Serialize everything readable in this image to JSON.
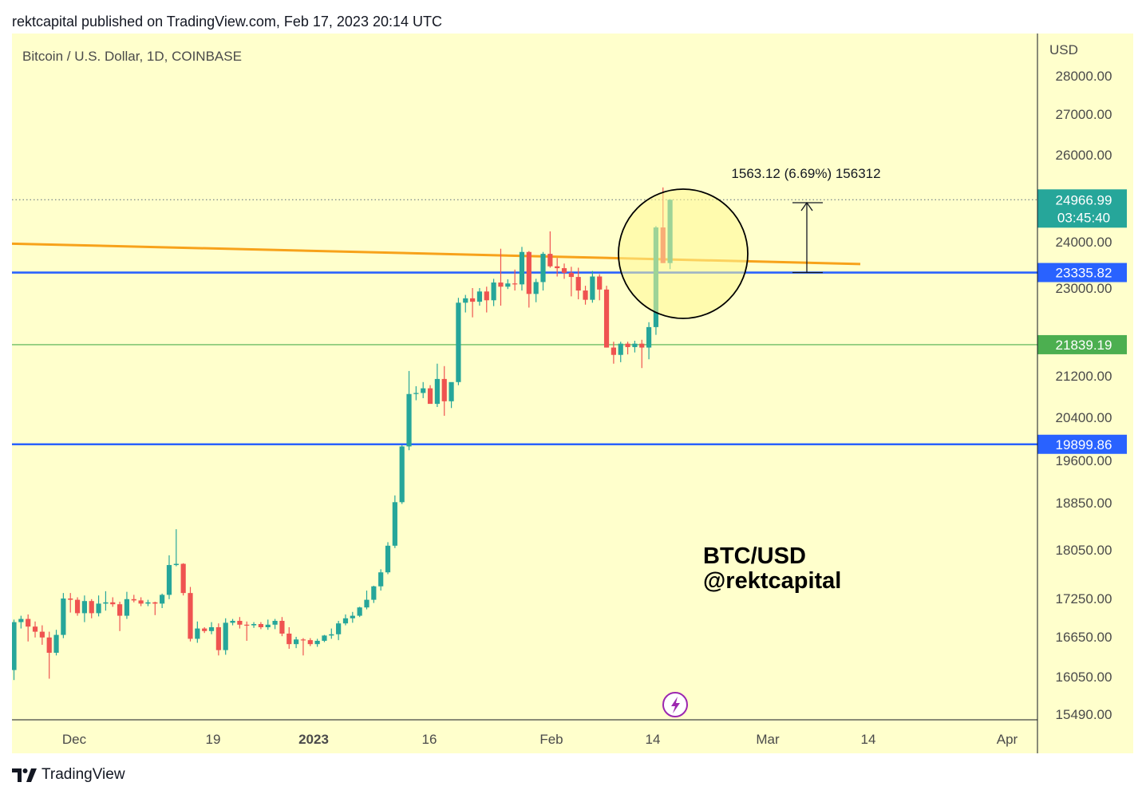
{
  "header": {
    "published": "rektcapital published on TradingView.com, Feb 17, 2023 20:14 UTC"
  },
  "footer": {
    "brand": "TradingView"
  },
  "chart_data": {
    "type": "candlestick",
    "symbol_label": "Bitcoin / U.S. Dollar, 1D, COINBASE",
    "currency": "USD",
    "watermark_lines": [
      "BTC/USD",
      "@rektcapital"
    ],
    "price_ticks": [
      "28000.00",
      "27000.00",
      "26000.00",
      "24000.00",
      "23000.00",
      "21200.00",
      "20400.00",
      "19600.00",
      "18850.00",
      "18050.00",
      "17250.00",
      "16650.00",
      "16050.00",
      "15490.00"
    ],
    "time_ticks": [
      {
        "label": "Dec",
        "bold": false
      },
      {
        "label": "19",
        "bold": false
      },
      {
        "label": "2023",
        "bold": true
      },
      {
        "label": "16",
        "bold": false
      },
      {
        "label": "Feb",
        "bold": false
      },
      {
        "label": "14",
        "bold": false
      },
      {
        "label": "Mar",
        "bold": false
      },
      {
        "label": "14",
        "bold": false
      },
      {
        "label": "Apr",
        "bold": false
      }
    ],
    "horizontal_levels": [
      {
        "price": 23335.82,
        "label": "23335.82",
        "color": "#2962ff",
        "style": "solid-thick"
      },
      {
        "price": 19899.86,
        "label": "19899.86",
        "color": "#2962ff",
        "style": "solid-thick"
      },
      {
        "price": 21839.19,
        "label": "21839.19",
        "color": "#4caf50",
        "style": "solid-thin"
      }
    ],
    "last_price": {
      "price": 24966.99,
      "label": "24966.99",
      "countdown": "03:45:40",
      "color": "#26a69a"
    },
    "trendline": {
      "color": "#f7a21b",
      "from_price": 23960,
      "to_price": 23520
    },
    "measure": {
      "label": "1563.12 (6.69%) 156312",
      "from_price": 23335.82,
      "to_price": 24898.94
    },
    "colors": {
      "up": "#26a69a",
      "down": "#ef5350",
      "background": "#ffffcc"
    },
    "candles": [
      {
        "o": 16150,
        "h": 16920,
        "l": 16000,
        "c": 16880
      },
      {
        "o": 16880,
        "h": 16980,
        "l": 16780,
        "c": 16930
      },
      {
        "o": 16930,
        "h": 17000,
        "l": 16580,
        "c": 16810
      },
      {
        "o": 16810,
        "h": 16890,
        "l": 16640,
        "c": 16730
      },
      {
        "o": 16730,
        "h": 16830,
        "l": 16530,
        "c": 16640
      },
      {
        "o": 16640,
        "h": 16730,
        "l": 16020,
        "c": 16410
      },
      {
        "o": 16410,
        "h": 16760,
        "l": 16370,
        "c": 16680
      },
      {
        "o": 16680,
        "h": 17340,
        "l": 16630,
        "c": 17250
      },
      {
        "o": 17250,
        "h": 17340,
        "l": 17030,
        "c": 17230
      },
      {
        "o": 17230,
        "h": 17270,
        "l": 16980,
        "c": 17020
      },
      {
        "o": 17020,
        "h": 17300,
        "l": 16880,
        "c": 17210
      },
      {
        "o": 17210,
        "h": 17240,
        "l": 16940,
        "c": 17020
      },
      {
        "o": 17020,
        "h": 17300,
        "l": 16970,
        "c": 17170
      },
      {
        "o": 17170,
        "h": 17370,
        "l": 17060,
        "c": 17190
      },
      {
        "o": 17190,
        "h": 17270,
        "l": 17120,
        "c": 17160
      },
      {
        "o": 17160,
        "h": 17200,
        "l": 16740,
        "c": 16980
      },
      {
        "o": 16980,
        "h": 17360,
        "l": 16930,
        "c": 17240
      },
      {
        "o": 17240,
        "h": 17310,
        "l": 17190,
        "c": 17220
      },
      {
        "o": 17220,
        "h": 17270,
        "l": 17130,
        "c": 17170
      },
      {
        "o": 17170,
        "h": 17230,
        "l": 17130,
        "c": 17190
      },
      {
        "o": 17190,
        "h": 17200,
        "l": 16990,
        "c": 17170
      },
      {
        "o": 17170,
        "h": 17330,
        "l": 17100,
        "c": 17310
      },
      {
        "o": 17310,
        "h": 17960,
        "l": 17240,
        "c": 17800
      },
      {
        "o": 17800,
        "h": 18400,
        "l": 17780,
        "c": 17820
      },
      {
        "o": 17820,
        "h": 17830,
        "l": 17300,
        "c": 17340
      },
      {
        "o": 17340,
        "h": 17440,
        "l": 16580,
        "c": 16620
      },
      {
        "o": 16620,
        "h": 16890,
        "l": 16560,
        "c": 16780
      },
      {
        "o": 16780,
        "h": 16800,
        "l": 16710,
        "c": 16740
      },
      {
        "o": 16740,
        "h": 16880,
        "l": 16690,
        "c": 16800
      },
      {
        "o": 16800,
        "h": 16860,
        "l": 16370,
        "c": 16450
      },
      {
        "o": 16450,
        "h": 16940,
        "l": 16380,
        "c": 16870
      },
      {
        "o": 16870,
        "h": 16930,
        "l": 16830,
        "c": 16900
      },
      {
        "o": 16900,
        "h": 16960,
        "l": 16780,
        "c": 16840
      },
      {
        "o": 16840,
        "h": 16890,
        "l": 16590,
        "c": 16830
      },
      {
        "o": 16830,
        "h": 16880,
        "l": 16790,
        "c": 16850
      },
      {
        "o": 16850,
        "h": 16880,
        "l": 16770,
        "c": 16800
      },
      {
        "o": 16800,
        "h": 16920,
        "l": 16760,
        "c": 16840
      },
      {
        "o": 16840,
        "h": 16930,
        "l": 16770,
        "c": 16900
      },
      {
        "o": 16900,
        "h": 16960,
        "l": 16660,
        "c": 16700
      },
      {
        "o": 16700,
        "h": 16800,
        "l": 16470,
        "c": 16540
      },
      {
        "o": 16540,
        "h": 16650,
        "l": 16480,
        "c": 16610
      },
      {
        "o": 16610,
        "h": 16630,
        "l": 16370,
        "c": 16600
      },
      {
        "o": 16600,
        "h": 16630,
        "l": 16510,
        "c": 16540
      },
      {
        "o": 16540,
        "h": 16620,
        "l": 16500,
        "c": 16590
      },
      {
        "o": 16590,
        "h": 16680,
        "l": 16570,
        "c": 16670
      },
      {
        "o": 16670,
        "h": 16780,
        "l": 16620,
        "c": 16690
      },
      {
        "o": 16690,
        "h": 16900,
        "l": 16600,
        "c": 16860
      },
      {
        "o": 16860,
        "h": 17000,
        "l": 16830,
        "c": 16940
      },
      {
        "o": 16940,
        "h": 17040,
        "l": 16870,
        "c": 16980
      },
      {
        "o": 16980,
        "h": 17120,
        "l": 16960,
        "c": 17110
      },
      {
        "o": 17110,
        "h": 17380,
        "l": 17080,
        "c": 17230
      },
      {
        "o": 17230,
        "h": 17460,
        "l": 17180,
        "c": 17450
      },
      {
        "o": 17450,
        "h": 17730,
        "l": 17380,
        "c": 17680
      },
      {
        "o": 17680,
        "h": 18180,
        "l": 17650,
        "c": 18120
      },
      {
        "o": 18120,
        "h": 18980,
        "l": 18080,
        "c": 18860
      },
      {
        "o": 18860,
        "h": 19880,
        "l": 18830,
        "c": 19860
      },
      {
        "o": 19860,
        "h": 21300,
        "l": 19790,
        "c": 20850
      },
      {
        "o": 20850,
        "h": 21000,
        "l": 20730,
        "c": 20870
      },
      {
        "o": 20870,
        "h": 21080,
        "l": 20770,
        "c": 20960
      },
      {
        "o": 20960,
        "h": 21020,
        "l": 20710,
        "c": 20660
      },
      {
        "o": 20660,
        "h": 21450,
        "l": 20600,
        "c": 21140
      },
      {
        "o": 21140,
        "h": 21400,
        "l": 20430,
        "c": 20710
      },
      {
        "o": 20710,
        "h": 21060,
        "l": 20580,
        "c": 21080
      },
      {
        "o": 21080,
        "h": 22800,
        "l": 21020,
        "c": 22700
      },
      {
        "o": 22700,
        "h": 22860,
        "l": 22500,
        "c": 22790
      },
      {
        "o": 22790,
        "h": 23000,
        "l": 22400,
        "c": 22720
      },
      {
        "o": 22720,
        "h": 23000,
        "l": 22640,
        "c": 22930
      },
      {
        "o": 22930,
        "h": 23030,
        "l": 22500,
        "c": 22750
      },
      {
        "o": 22750,
        "h": 23200,
        "l": 22630,
        "c": 23120
      },
      {
        "o": 23120,
        "h": 23850,
        "l": 22640,
        "c": 23030
      },
      {
        "o": 23030,
        "h": 23190,
        "l": 22980,
        "c": 23100
      },
      {
        "o": 23100,
        "h": 23400,
        "l": 22950,
        "c": 23080
      },
      {
        "o": 23080,
        "h": 23890,
        "l": 22950,
        "c": 23780
      },
      {
        "o": 23780,
        "h": 23800,
        "l": 22600,
        "c": 22880
      },
      {
        "o": 22880,
        "h": 23200,
        "l": 22710,
        "c": 23130
      },
      {
        "o": 23130,
        "h": 23780,
        "l": 22950,
        "c": 23740
      },
      {
        "o": 23740,
        "h": 24240,
        "l": 23440,
        "c": 23470
      },
      {
        "o": 23470,
        "h": 23650,
        "l": 23250,
        "c": 23430
      },
      {
        "o": 23430,
        "h": 23530,
        "l": 23200,
        "c": 23330
      },
      {
        "o": 23330,
        "h": 23460,
        "l": 22830,
        "c": 23240
      },
      {
        "o": 23240,
        "h": 23440,
        "l": 22770,
        "c": 22950
      },
      {
        "o": 22950,
        "h": 23050,
        "l": 22660,
        "c": 22760
      },
      {
        "o": 22760,
        "h": 23370,
        "l": 22700,
        "c": 23250
      },
      {
        "o": 23250,
        "h": 23300,
        "l": 22750,
        "c": 22970
      },
      {
        "o": 22970,
        "h": 23050,
        "l": 21780,
        "c": 21780
      },
      {
        "o": 21780,
        "h": 21900,
        "l": 21450,
        "c": 21630
      },
      {
        "o": 21630,
        "h": 21900,
        "l": 21480,
        "c": 21860
      },
      {
        "o": 21860,
        "h": 21900,
        "l": 21640,
        "c": 21790
      },
      {
        "o": 21790,
        "h": 21920,
        "l": 21680,
        "c": 21860
      },
      {
        "o": 21860,
        "h": 21940,
        "l": 21360,
        "c": 21780
      },
      {
        "o": 21780,
        "h": 22300,
        "l": 21540,
        "c": 22200
      },
      {
        "o": 22200,
        "h": 24360,
        "l": 22040,
        "c": 24330
      },
      {
        "o": 24330,
        "h": 25250,
        "l": 23540,
        "c": 23540
      },
      {
        "o": 23540,
        "h": 24980,
        "l": 23410,
        "c": 24966.99
      }
    ]
  }
}
